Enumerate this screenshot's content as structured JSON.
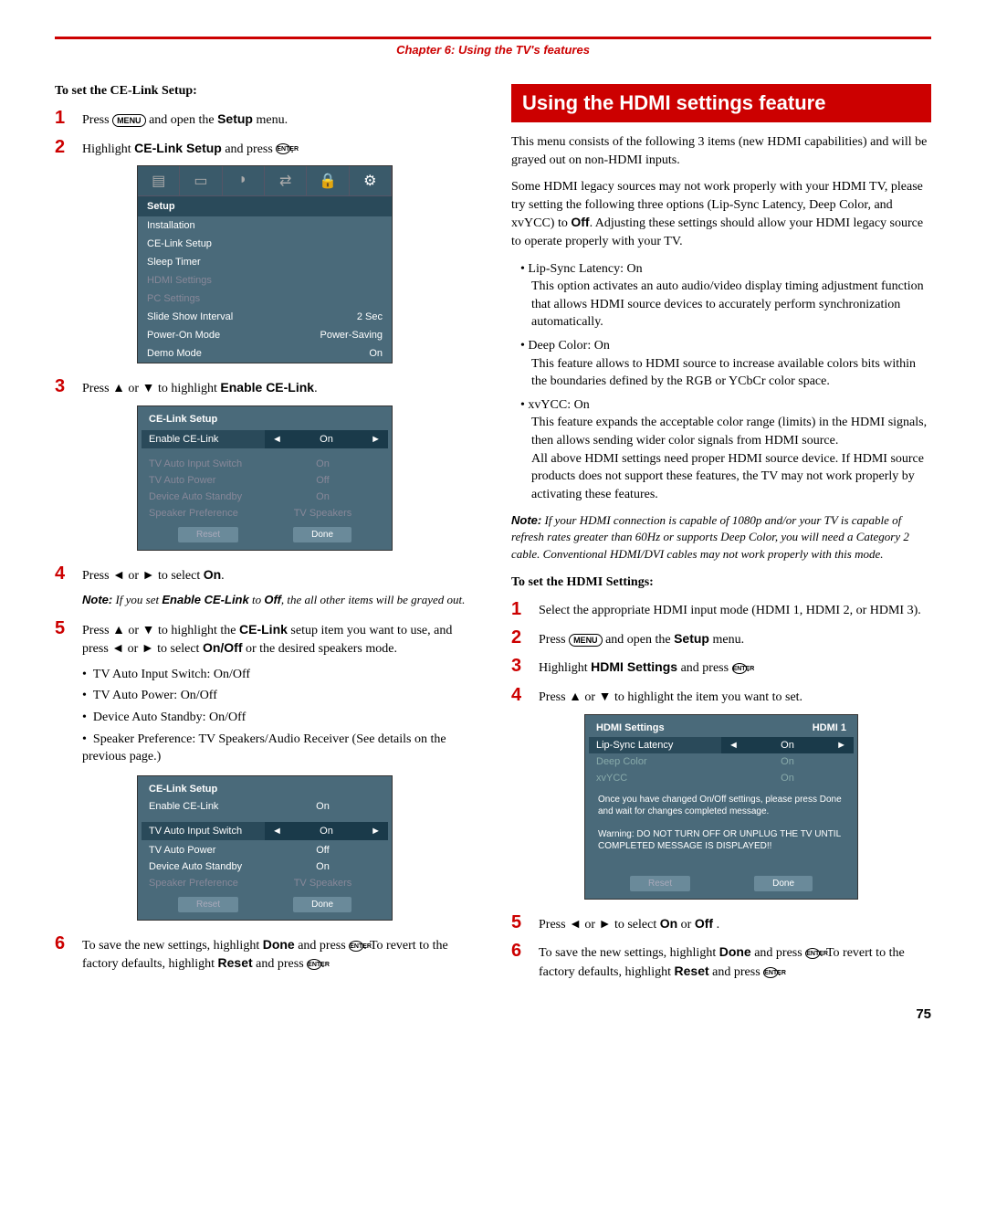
{
  "chapter_title": "Chapter 6: Using the TV's features",
  "left": {
    "header": "To set the CE-Link Setup:",
    "step1_pre": "Press ",
    "step1_key": "MENU",
    "step1_post": " and open the ",
    "step1_bold": "Setup",
    "step1_end": " menu.",
    "step2_pre": "Highlight ",
    "step2_bold": "CE-Link Setup",
    "step2_mid": " and press ",
    "step2_key": "ENTER",
    "step2_end": ".",
    "setup_menu": {
      "title": "Setup",
      "rows": [
        {
          "label": "Installation",
          "val": "",
          "dim": false
        },
        {
          "label": "CE-Link Setup",
          "val": "",
          "dim": false
        },
        {
          "label": "Sleep Timer",
          "val": "",
          "dim": false
        },
        {
          "label": "HDMI Settings",
          "val": "",
          "dim": true
        },
        {
          "label": "PC Settings",
          "val": "",
          "dim": true
        },
        {
          "label": "Slide Show Interval",
          "val": "2 Sec",
          "dim": false
        },
        {
          "label": "Power-On Mode",
          "val": "Power-Saving",
          "dim": false
        },
        {
          "label": "Demo Mode",
          "val": "On",
          "dim": false
        }
      ]
    },
    "step3_pre": "Press ",
    "step3_mid": " or ",
    "step3_post": " to highlight ",
    "step3_bold": "Enable CE-Link",
    "step3_end": ".",
    "celink_menu": {
      "title": "CE-Link Setup",
      "sel_label": "Enable CE-Link",
      "sel_val": "On",
      "rows": [
        {
          "label": "TV Auto Input Switch",
          "val": "On",
          "dim": true
        },
        {
          "label": "TV Auto Power",
          "val": "Off",
          "dim": true
        },
        {
          "label": "Device Auto Standby",
          "val": "On",
          "dim": true
        },
        {
          "label": "Speaker Preference",
          "val": "TV Speakers",
          "dim": true
        }
      ],
      "reset": "Reset",
      "done": "Done"
    },
    "step4_pre": "Press ",
    "step4_mid": " or ",
    "step4_post": " to select ",
    "step4_bold": "On",
    "step4_end": ".",
    "note1_pre": "Note:",
    "note1_text": " If you set ",
    "note1_b1": "Enable CE-Link",
    "note1_mid": " to ",
    "note1_b2": "Off",
    "note1_end": ", the all other items will be grayed out.",
    "step5_pre": "Press ",
    "step5_mid1": " or ",
    "step5_mid2": " to highlight the ",
    "step5_bold1": "CE-Link",
    "step5_mid3": " setup item you want to use, and press ",
    "step5_mid4": " or ",
    "step5_mid5": " to select ",
    "step5_bold2": "On/Off",
    "step5_end": " or the desired speakers mode.",
    "bullets5": [
      "TV Auto Input Switch: On/Off",
      "TV Auto Power: On/Off",
      "Device Auto Standby: On/Off",
      "Speaker Preference: TV Speakers/Audio Receiver (See details on the previous page.)"
    ],
    "celink_menu2": {
      "title": "CE-Link Setup",
      "top_label": "Enable CE-Link",
      "top_val": "On",
      "sel_label": "TV Auto Input Switch",
      "sel_val": "On",
      "rows": [
        {
          "label": "TV Auto Power",
          "val": "Off",
          "dim": false
        },
        {
          "label": "Device Auto Standby",
          "val": "On",
          "dim": false
        },
        {
          "label": "Speaker Preference",
          "val": "TV Speakers",
          "dim": true
        }
      ],
      "reset": "Reset",
      "done": "Done"
    },
    "step6_pre": "To save the new settings, highlight ",
    "step6_bold1": "Done",
    "step6_mid1": " and press ",
    "step6_key1": "ENTER",
    "step6_mid2": ". To revert to the factory defaults, highlight ",
    "step6_bold2": "Reset",
    "step6_mid3": " and press ",
    "step6_key2": "ENTER",
    "step6_end": "."
  },
  "right": {
    "section_title": "Using the HDMI settings feature",
    "p1": "This menu consists of the following 3 items (new HDMI capabilities) and will be grayed out on non-HDMI inputs.",
    "p2_pre": "Some HDMI legacy sources may not work properly with your HDMI TV, please try setting the following three options (Lip-Sync Latency, Deep Color, and xvYCC) to ",
    "p2_bold": "Off",
    "p2_post": ". Adjusting these settings should allow your HDMI legacy source to operate properly with your TV.",
    "b1_title": "Lip-Sync Latency: On",
    "b1_text": "This option activates an auto audio/video display timing adjustment function that allows HDMI source devices to accurately perform synchronization automatically.",
    "b2_title": "Deep Color: On",
    "b2_text": "This feature allows to HDMI source to increase available colors bits within the boundaries defined by the RGB or YCbCr color space.",
    "b3_title": "xvYCC: On",
    "b3_text": "This feature expands the acceptable color range (limits) in the HDMI signals, then allows sending wider color signals from HDMI source.",
    "b3_text2": "All above HDMI settings need proper HDMI source device. If HDMI source products does not support these features, the TV may not work properly by activating these features.",
    "note2_pre": "Note:",
    "note2_text": " If your HDMI connection is capable of 1080p and/or your TV is capable of refresh rates greater than 60Hz or supports Deep Color, you will need a Category 2 cable. Conventional HDMI/DVI cables may not work properly with this mode.",
    "header2": "To set the HDMI Settings:",
    "step1": "Select the appropriate HDMI input mode (HDMI 1, HDMI 2, or HDMI 3).",
    "step2_pre": "Press ",
    "step2_key": "MENU",
    "step2_mid": " and open the ",
    "step2_bold": "Setup",
    "step2_end": " menu.",
    "step3_pre": "Highlight ",
    "step3_bold": "HDMI Settings",
    "step3_mid": " and press ",
    "step3_key": "ENTER",
    "step3_end": ".",
    "step4_pre": "Press ",
    "step4_mid": " or ",
    "step4_end": " to highlight the item you want to set.",
    "hdmi_menu": {
      "title": "HDMI Settings",
      "corner": "HDMI 1",
      "sel_label": "Lip-Sync Latency",
      "sel_val": "On",
      "rows": [
        {
          "label": "Deep Color",
          "val": "On",
          "dim": true
        },
        {
          "label": "xvYCC",
          "val": "On",
          "dim": true
        }
      ],
      "msg1": "Once you have changed On/Off settings, please press Done and wait for changes completed message.",
      "msg2": "Warning: DO NOT TURN OFF OR UNPLUG THE TV UNTIL COMPLETED MESSAGE IS DISPLAYED!!",
      "reset": "Reset",
      "done": "Done"
    },
    "step5_pre": "Press ",
    "step5_mid1": " or ",
    "step5_mid2": " to select ",
    "step5_bold1": "On",
    "step5_mid3": " or ",
    "step5_bold2": "Off",
    "step5_end": " .",
    "step6_pre": "To save the new settings, highlight ",
    "step6_bold1": "Done",
    "step6_mid1": " and press ",
    "step6_key1": "ENTER",
    "step6_mid2": ". To revert to the factory defaults, highlight ",
    "step6_bold2": "Reset",
    "step6_mid3": " and press ",
    "step6_key2": "ENTER",
    "step6_end": "."
  },
  "page_num": "75"
}
